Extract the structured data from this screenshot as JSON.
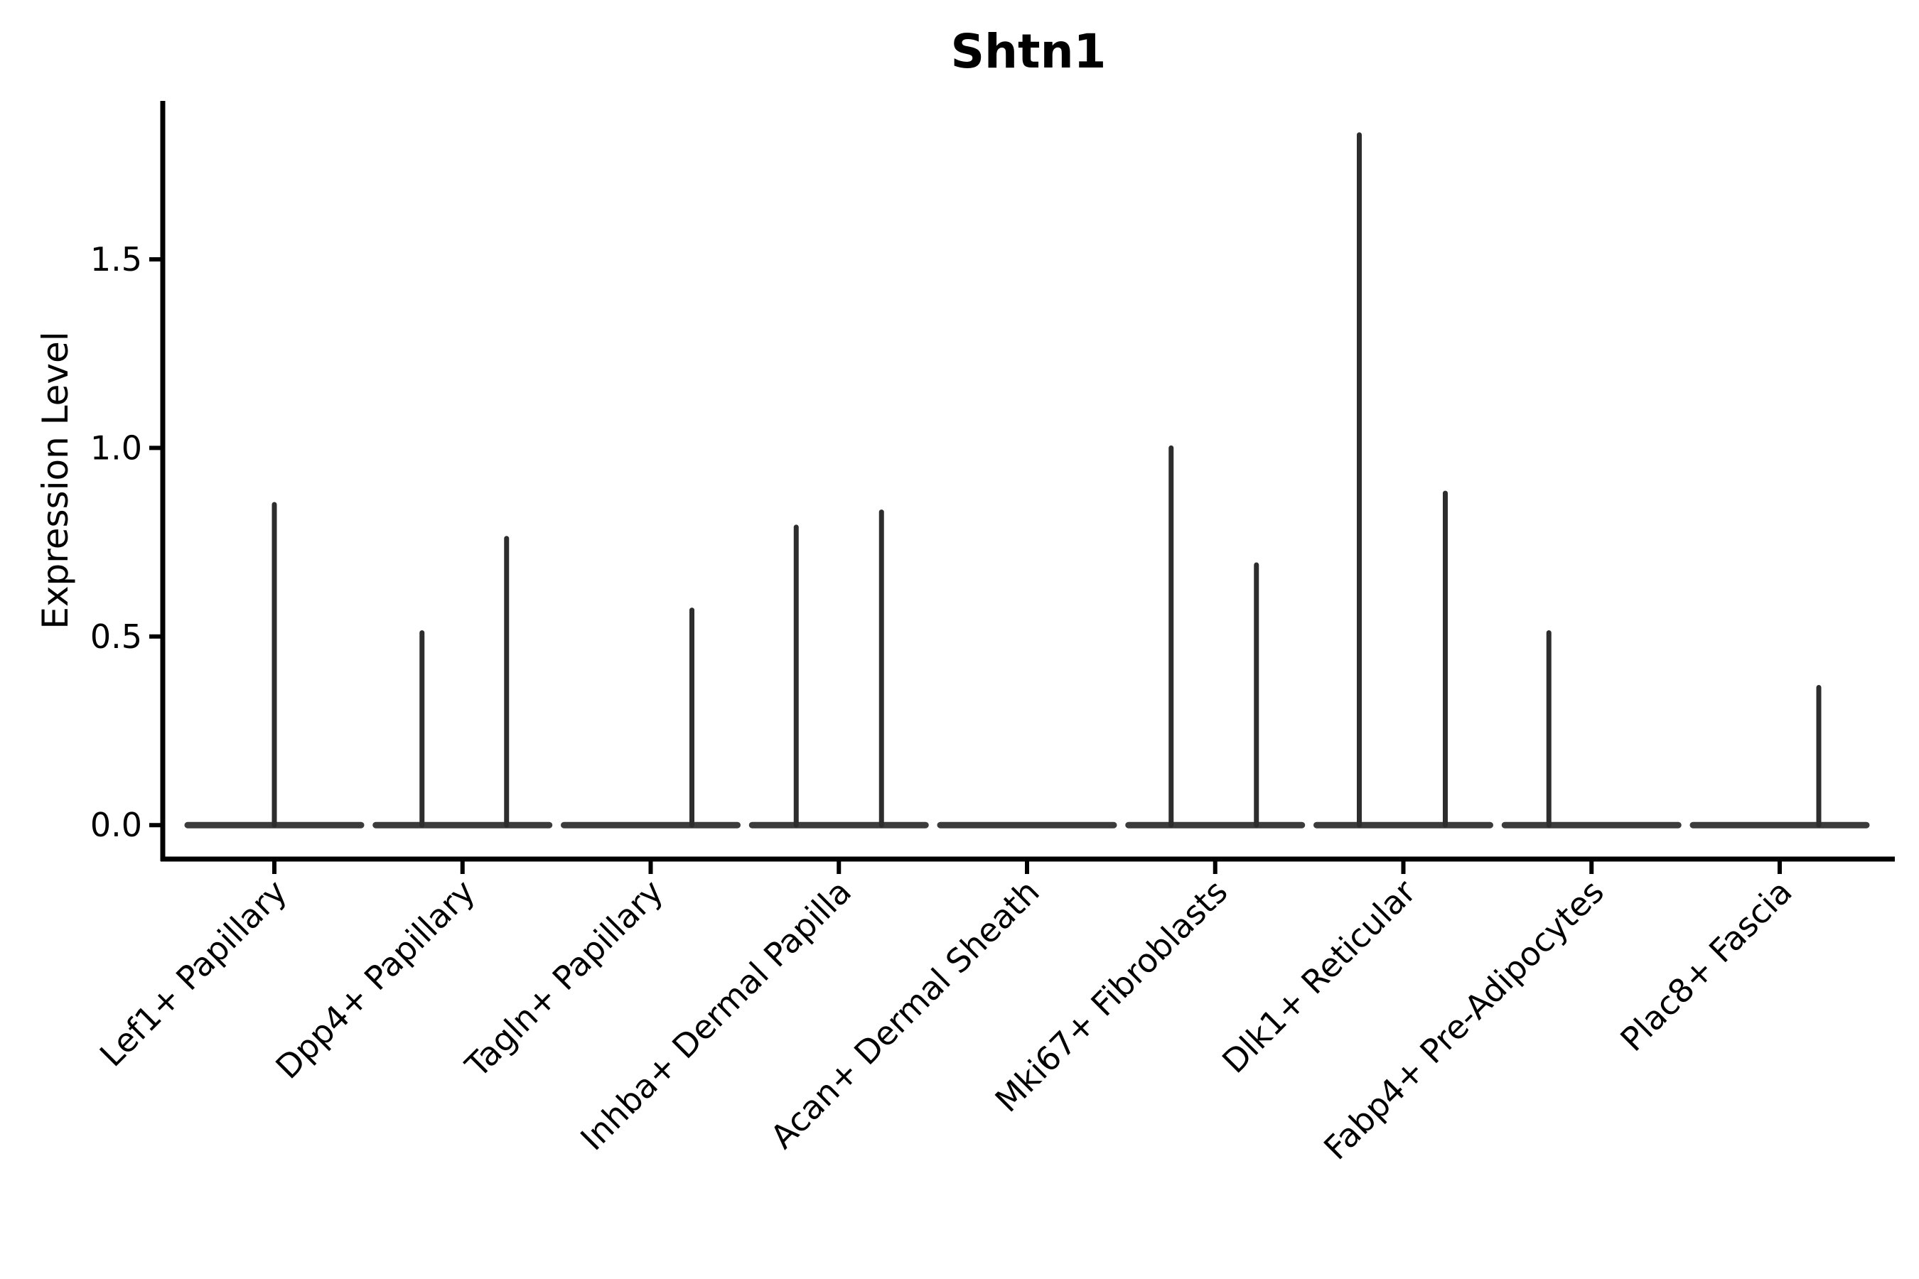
{
  "chart_data": {
    "type": "violin",
    "title": "Shtn1",
    "ylabel": "Expression Level",
    "xlabel": "",
    "ylim": [
      -0.09,
      1.92
    ],
    "yticks": [
      0.0,
      0.5,
      1.0,
      1.5
    ],
    "grid": false,
    "legend": null,
    "categories": [
      "Lef1+ Papillary",
      "Dpp4+ Papillary",
      "Tagln+ Papillary",
      "Inhba+ Dermal Papilla",
      "Acan+ Dermal Sheath",
      "Mki67+ Fibroblasts",
      "Dlk1+ Reticular",
      "Fabp4+ Pre-Adipocytes",
      "Plac8+ Fascia"
    ],
    "series": [
      {
        "category": "Lef1+ Papillary",
        "zero_line": true,
        "spikes": [
          {
            "dx": 0,
            "value": 0.85
          }
        ]
      },
      {
        "category": "Dpp4+ Papillary",
        "zero_line": true,
        "spikes": [
          {
            "dx": -57,
            "value": 0.51
          },
          {
            "dx": 62,
            "value": 0.76
          }
        ]
      },
      {
        "category": "Tagln+ Papillary",
        "zero_line": true,
        "spikes": [
          {
            "dx": 58,
            "value": 0.57
          }
        ]
      },
      {
        "category": "Inhba+ Dermal Papilla",
        "zero_line": true,
        "spikes": [
          {
            "dx": -60,
            "value": 0.79
          },
          {
            "dx": 60,
            "value": 0.83
          }
        ]
      },
      {
        "category": "Acan+ Dermal Sheath",
        "zero_line": true,
        "spikes": []
      },
      {
        "category": "Mki67+ Fibroblasts",
        "zero_line": true,
        "spikes": [
          {
            "dx": -62,
            "value": 1.0
          },
          {
            "dx": 58,
            "value": 0.69
          }
        ]
      },
      {
        "category": "Dlk1+ Reticular",
        "zero_line": true,
        "spikes": [
          {
            "dx": -62,
            "value": 1.83
          },
          {
            "dx": 59,
            "value": 0.88
          }
        ]
      },
      {
        "category": "Fabp4+ Pre-Adipocytes",
        "zero_line": true,
        "spikes": [
          {
            "dx": -60,
            "value": 0.51
          }
        ]
      },
      {
        "category": "Plac8+ Fascia",
        "zero_line": true,
        "spikes": [
          {
            "dx": 55,
            "value": 0.365
          }
        ]
      }
    ],
    "colors": {
      "violin_line": "#2d2d2d",
      "zero_line": "#3c3c3c",
      "axis": "#000000",
      "text": "#000000",
      "background": "#ffffff"
    }
  }
}
